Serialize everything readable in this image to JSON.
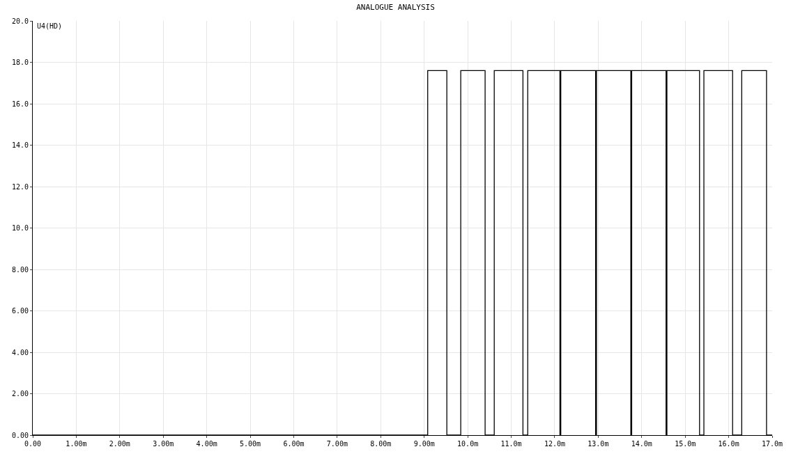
{
  "chart_data": {
    "type": "step",
    "title": "ANALOGUE ANALYSIS",
    "x": [
      0,
      9.08,
      9.52,
      9.84,
      10.4,
      10.61,
      11.27,
      11.38,
      12.12,
      12.14,
      12.94,
      12.96,
      13.75,
      13.77,
      14.56,
      14.58,
      15.33,
      15.43,
      16.09,
      16.3,
      16.87,
      17.0
    ],
    "series": [
      {
        "name": "U4(HD)",
        "color": "#000000",
        "values": [
          0,
          17.6,
          0,
          17.6,
          0,
          17.6,
          0,
          17.6,
          0,
          17.6,
          0,
          17.6,
          0,
          17.6,
          0,
          17.6,
          0,
          17.6,
          0,
          17.6,
          0,
          0
        ]
      }
    ],
    "xlim": [
      0,
      17.0
    ],
    "xticks": [
      {
        "value": 0,
        "label": "0.00"
      },
      {
        "value": 1,
        "label": "1.00m"
      },
      {
        "value": 2,
        "label": "2.00m"
      },
      {
        "value": 3,
        "label": "3.00m"
      },
      {
        "value": 4,
        "label": "4.00m"
      },
      {
        "value": 5,
        "label": "5.00m"
      },
      {
        "value": 6,
        "label": "6.00m"
      },
      {
        "value": 7,
        "label": "7.00m"
      },
      {
        "value": 8,
        "label": "8.00m"
      },
      {
        "value": 9,
        "label": "9.00m"
      },
      {
        "value": 10,
        "label": "10.0m"
      },
      {
        "value": 11,
        "label": "11.0m"
      },
      {
        "value": 12,
        "label": "12.0m"
      },
      {
        "value": 13,
        "label": "13.0m"
      },
      {
        "value": 14,
        "label": "14.0m"
      },
      {
        "value": 15,
        "label": "15.0m"
      },
      {
        "value": 16,
        "label": "16.0m"
      },
      {
        "value": 17,
        "label": "17.0m"
      }
    ],
    "ylim": [
      0,
      20
    ],
    "yticks": [
      {
        "value": 0,
        "label": "0.00"
      },
      {
        "value": 2,
        "label": "2.00"
      },
      {
        "value": 4,
        "label": "4.00"
      },
      {
        "value": 6,
        "label": "6.00"
      },
      {
        "value": 8,
        "label": "8.00"
      },
      {
        "value": 10,
        "label": "10.0"
      },
      {
        "value": 12,
        "label": "12.0"
      },
      {
        "value": 14,
        "label": "14.0"
      },
      {
        "value": 16,
        "label": "16.0"
      },
      {
        "value": 18,
        "label": "18.0"
      },
      {
        "value": 20,
        "label": "20.0"
      }
    ],
    "grid": true,
    "legend": false,
    "marker": "none",
    "line_style": "solid"
  }
}
